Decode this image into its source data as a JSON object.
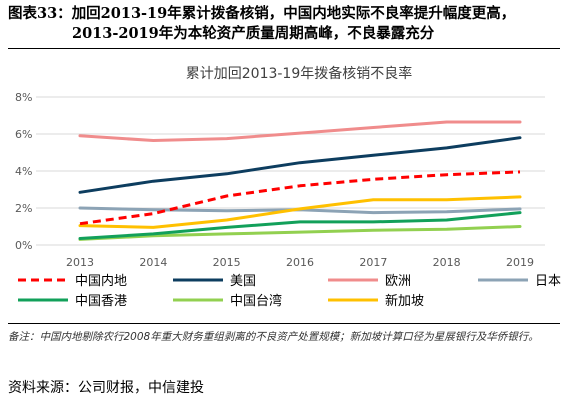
{
  "figure": {
    "label": "图表33：",
    "title_line1": "加回2013-19年累计拨备核销，中国内地实际不良率提升幅度更高，",
    "title_line2": "2013-2019年为本轮资产质量周期高峰，不良暴露充分"
  },
  "note": "备注：中国内地剔除农行2008年重大财务重组剥离的不良资产处置规模；新加坡计算口径为星展银行及华侨银行。",
  "source": "资料来源：公司财报，中信建投",
  "chart_data": {
    "type": "line",
    "title": "累计加回2013-19年拨备核销不良率",
    "x": [
      "2013",
      "2014",
      "2015",
      "2016",
      "2017",
      "2018",
      "2019"
    ],
    "ylim": [
      0,
      8
    ],
    "yticks": [
      "0%",
      "2%",
      "4%",
      "6%",
      "8%"
    ],
    "ytick_values": [
      0,
      2,
      4,
      6,
      8
    ],
    "grid": true,
    "legend_position": "bottom",
    "series": [
      {
        "name": "中国内地",
        "color": "#ff0000",
        "dashed": true,
        "values": [
          1.15,
          1.7,
          2.65,
          3.2,
          3.55,
          3.8,
          3.95
        ]
      },
      {
        "name": "美国",
        "color": "#0d3d5f",
        "dashed": false,
        "values": [
          2.85,
          3.45,
          3.85,
          4.45,
          4.85,
          5.25,
          5.8
        ]
      },
      {
        "name": "欧洲",
        "color": "#f08c8c",
        "dashed": false,
        "values": [
          5.9,
          5.65,
          5.75,
          6.05,
          6.35,
          6.65,
          6.65
        ]
      },
      {
        "name": "日本",
        "color": "#8ca3b5",
        "dashed": false,
        "values": [
          2.0,
          1.9,
          1.85,
          1.9,
          1.75,
          1.8,
          1.95
        ]
      },
      {
        "name": "中国香港",
        "color": "#12a05a",
        "dashed": false,
        "values": [
          0.35,
          0.6,
          0.95,
          1.25,
          1.25,
          1.35,
          1.75
        ]
      },
      {
        "name": "中国台湾",
        "color": "#92d050",
        "dashed": false,
        "values": [
          0.3,
          0.5,
          0.6,
          0.7,
          0.8,
          0.85,
          1.0
        ]
      },
      {
        "name": "新加坡",
        "color": "#ffc000",
        "dashed": false,
        "values": [
          1.05,
          0.95,
          1.35,
          1.95,
          2.45,
          2.45,
          2.6
        ]
      }
    ]
  }
}
